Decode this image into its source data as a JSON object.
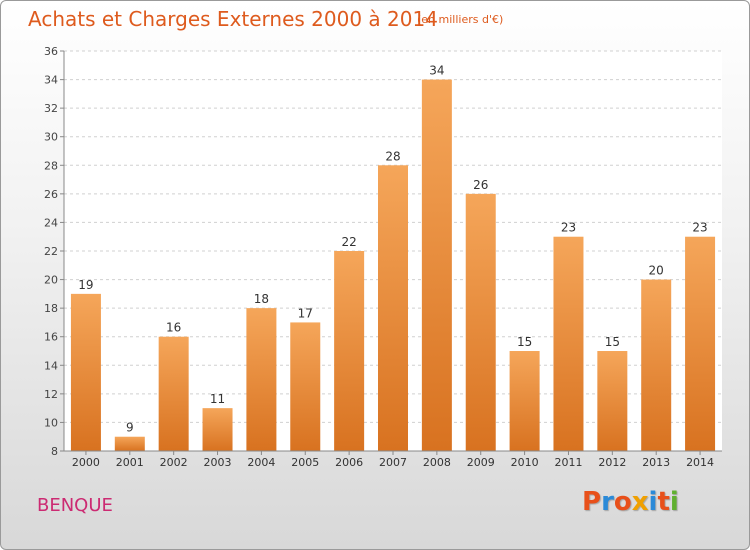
{
  "header": {
    "title": "Achats et Charges Externes 2000 à 2014",
    "subtitle": "(en milliers d'€)"
  },
  "footer": {
    "town": "BENQUE",
    "logo_text": "Proxiti",
    "logo_colors": [
      "#e8501a",
      "#2a8ad8",
      "#e8501a",
      "#f0a000",
      "#2a8ad8",
      "#e8501a",
      "#60b030"
    ]
  },
  "chart_data": {
    "type": "bar",
    "title": "Achats et Charges Externes 2000 à 2014",
    "subtitle": "(en milliers d'€)",
    "categories": [
      "2000",
      "2001",
      "2002",
      "2003",
      "2004",
      "2005",
      "2006",
      "2007",
      "2008",
      "2009",
      "2010",
      "2011",
      "2012",
      "2013",
      "2014"
    ],
    "values": [
      19,
      9,
      16,
      11,
      18,
      17,
      22,
      28,
      34,
      26,
      15,
      23,
      15,
      20,
      23
    ],
    "ylim": [
      8,
      36
    ],
    "yticks": [
      8,
      10,
      12,
      14,
      16,
      18,
      20,
      22,
      24,
      26,
      28,
      30,
      32,
      34,
      36
    ],
    "grid": true,
    "bar_color_top": "#f5a65a",
    "bar_color_bottom": "#d87220",
    "xlabel": "",
    "ylabel": ""
  }
}
